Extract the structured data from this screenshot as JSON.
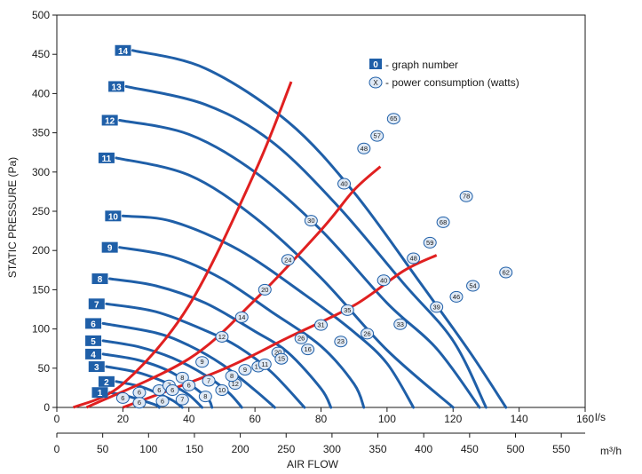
{
  "chart_data": {
    "type": "line",
    "xlabel_top_unit": "l/s",
    "xlabel_bottom_unit": "m³/h",
    "xlabel": "AIR FLOW",
    "ylabel": "STATIC PRESSURE (Pa)",
    "xlim": [
      0,
      160
    ],
    "ylim": [
      0,
      500
    ],
    "x_ticks": [
      0,
      20,
      40,
      60,
      80,
      100,
      120,
      140,
      160
    ],
    "y_ticks": [
      0,
      50,
      100,
      150,
      200,
      250,
      300,
      350,
      400,
      450,
      500
    ],
    "x2_ticks": [
      0,
      50,
      100,
      150,
      200,
      250,
      300,
      350,
      400,
      450,
      500,
      550
    ],
    "legend": {
      "graph_number_symbol": "0",
      "graph_number_text": "- graph number",
      "power_symbol": "X",
      "power_text": "- power consumption (watts)"
    },
    "colors": {
      "curve": "#1f5fa8",
      "system_line": "#e02020",
      "badge": "#1f5fa8",
      "marker_fill": "#dfe9f5"
    },
    "series": [
      {
        "name": "1",
        "label_x": 16,
        "x": [
          16,
          20,
          25,
          30,
          31
        ],
        "y": [
          19,
          16,
          10,
          3,
          0
        ]
      },
      {
        "name": "2",
        "label_x": 18,
        "x": [
          18,
          25,
          30,
          35,
          38
        ],
        "y": [
          33,
          27,
          19,
          9,
          0
        ]
      },
      {
        "name": "3",
        "label_x": 15,
        "x": [
          15,
          25,
          35,
          40,
          44
        ],
        "y": [
          52,
          44,
          28,
          16,
          0
        ]
      },
      {
        "name": "4",
        "label_x": 14,
        "x": [
          14,
          25,
          35,
          45,
          47
        ],
        "y": [
          68,
          60,
          44,
          14,
          0
        ]
      },
      {
        "name": "5",
        "label_x": 14,
        "x": [
          14,
          25,
          35,
          45,
          52,
          56
        ],
        "y": [
          85,
          77,
          63,
          41,
          19,
          0
        ]
      },
      {
        "name": "6",
        "label_x": 14,
        "x": [
          14,
          30,
          40,
          50,
          60,
          66
        ],
        "y": [
          107,
          95,
          79,
          55,
          22,
          0
        ]
      },
      {
        "name": "7",
        "label_x": 15,
        "x": [
          15,
          30,
          45,
          55,
          65,
          75
        ],
        "y": [
          132,
          122,
          98,
          77,
          45,
          0
        ]
      },
      {
        "name": "8",
        "label_x": 16,
        "x": [
          16,
          30,
          45,
          60,
          70,
          80,
          83
        ],
        "y": [
          164,
          155,
          133,
          97,
          70,
          24,
          0
        ]
      },
      {
        "name": "9",
        "label_x": 19,
        "x": [
          19,
          35,
          50,
          65,
          80,
          90,
          93
        ],
        "y": [
          204,
          192,
          164,
          122,
          78,
          30,
          0
        ]
      },
      {
        "name": "10",
        "label_x": 20,
        "x": [
          20,
          35,
          55,
          75,
          90,
          100,
          108
        ],
        "y": [
          244,
          237,
          201,
          144,
          96,
          56,
          0
        ]
      },
      {
        "name": "11",
        "label_x": 18,
        "x": [
          18,
          40,
          60,
          80,
          100,
          120
        ],
        "y": [
          318,
          296,
          242,
          165,
          73,
          0
        ]
      },
      {
        "name": "12",
        "label_x": 19,
        "x": [
          19,
          40,
          60,
          80,
          100,
          115,
          128
        ],
        "y": [
          366,
          348,
          300,
          226,
          133,
          75,
          0
        ]
      },
      {
        "name": "13",
        "label_x": 21,
        "x": [
          21,
          45,
          65,
          85,
          105,
          120,
          130
        ],
        "y": [
          409,
          386,
          339,
          257,
          158,
          85,
          0
        ]
      },
      {
        "name": "14",
        "label_x": 23,
        "x": [
          23,
          45,
          70,
          90,
          110,
          125,
          136
        ],
        "y": [
          455,
          432,
          364,
          274,
          159,
          71,
          0
        ]
      }
    ],
    "system_lines": [
      {
        "x": [
          5,
          20,
          40,
          60,
          71
        ],
        "y": [
          0,
          30,
          130,
          300,
          415
        ]
      },
      {
        "x": [
          9,
          40,
          60,
          80,
          90,
          98
        ],
        "y": [
          0,
          62,
          137,
          226,
          277,
          307
        ]
      },
      {
        "x": [
          20,
          50,
          70,
          90,
          105,
          115
        ],
        "y": [
          0,
          48,
          89,
          130,
          174,
          194
        ]
      }
    ],
    "power_markers": [
      {
        "x": 20,
        "y": 12,
        "value": "6"
      },
      {
        "x": 25,
        "y": 19,
        "value": "6"
      },
      {
        "x": 31,
        "y": 22,
        "value": "6"
      },
      {
        "x": 34,
        "y": 28,
        "value": "7"
      },
      {
        "x": 38,
        "y": 38,
        "value": "8"
      },
      {
        "x": 44,
        "y": 58,
        "value": "9"
      },
      {
        "x": 50,
        "y": 90,
        "value": "12"
      },
      {
        "x": 56,
        "y": 115,
        "value": "14"
      },
      {
        "x": 63,
        "y": 150,
        "value": "20"
      },
      {
        "x": 70,
        "y": 188,
        "value": "24"
      },
      {
        "x": 77,
        "y": 238,
        "value": "30"
      },
      {
        "x": 87,
        "y": 285,
        "value": "40"
      },
      {
        "x": 93,
        "y": 330,
        "value": "48"
      },
      {
        "x": 97,
        "y": 346,
        "value": "57"
      },
      {
        "x": 102,
        "y": 368,
        "value": "65"
      },
      {
        "x": 25,
        "y": 6,
        "value": "6"
      },
      {
        "x": 32,
        "y": 8,
        "value": "6"
      },
      {
        "x": 38,
        "y": 10,
        "value": "7"
      },
      {
        "x": 45,
        "y": 14,
        "value": "8"
      },
      {
        "x": 50,
        "y": 22,
        "value": "10"
      },
      {
        "x": 54,
        "y": 30,
        "value": "12"
      },
      {
        "x": 61,
        "y": 52,
        "value": "17"
      },
      {
        "x": 67,
        "y": 70,
        "value": "20"
      },
      {
        "x": 74,
        "y": 88,
        "value": "26"
      },
      {
        "x": 80,
        "y": 105,
        "value": "31"
      },
      {
        "x": 88,
        "y": 124,
        "value": "35"
      },
      {
        "x": 99,
        "y": 162,
        "value": "40"
      },
      {
        "x": 108,
        "y": 190,
        "value": "48"
      },
      {
        "x": 113,
        "y": 210,
        "value": "59"
      },
      {
        "x": 117,
        "y": 236,
        "value": "68"
      },
      {
        "x": 124,
        "y": 269,
        "value": "78"
      },
      {
        "x": 35,
        "y": 22,
        "value": "6"
      },
      {
        "x": 40,
        "y": 28,
        "value": "6"
      },
      {
        "x": 46,
        "y": 34,
        "value": "7"
      },
      {
        "x": 53,
        "y": 40,
        "value": "8"
      },
      {
        "x": 57,
        "y": 48,
        "value": "9"
      },
      {
        "x": 63,
        "y": 55,
        "value": "11"
      },
      {
        "x": 68,
        "y": 62,
        "value": "15"
      },
      {
        "x": 76,
        "y": 74,
        "value": "16"
      },
      {
        "x": 86,
        "y": 84,
        "value": "23"
      },
      {
        "x": 94,
        "y": 94,
        "value": "26"
      },
      {
        "x": 104,
        "y": 106,
        "value": "33"
      },
      {
        "x": 115,
        "y": 128,
        "value": "39"
      },
      {
        "x": 121,
        "y": 141,
        "value": "46"
      },
      {
        "x": 126,
        "y": 155,
        "value": "54"
      },
      {
        "x": 136,
        "y": 172,
        "value": "62"
      }
    ]
  }
}
